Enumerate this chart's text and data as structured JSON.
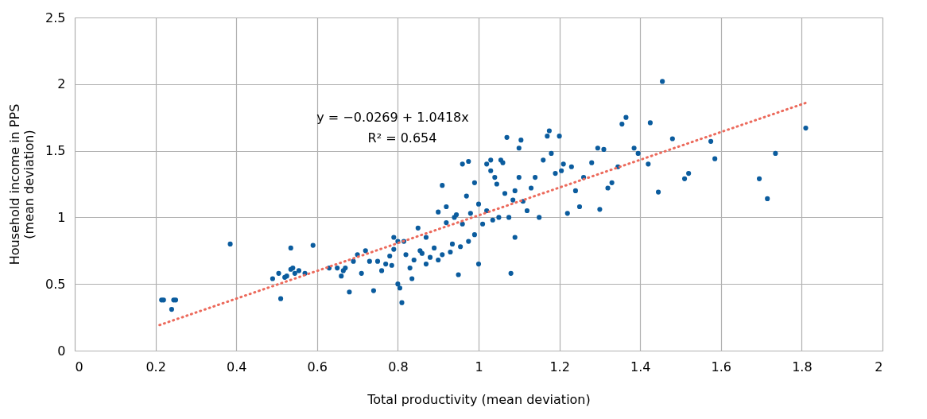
{
  "chart_data": {
    "type": "scatter",
    "xlabel": "Total productivity (mean deviation)",
    "ylabel": "Household income in PPS\n(mean deviation)",
    "xlim": [
      0,
      2
    ],
    "xticks": [
      0,
      0.2,
      0.4,
      0.6,
      0.8,
      1,
      1.2,
      1.4,
      1.6,
      1.8,
      2
    ],
    "ylim": [
      0,
      2.5
    ],
    "yticks": [
      0,
      0.5,
      1,
      1.5,
      2,
      2.5
    ],
    "grid": true,
    "marker": "circle",
    "annotations": [
      "y = −0.0269 + 1.0418x",
      "R² = 0.654"
    ],
    "series": [
      {
        "color": "#0b5c9e",
        "x": [
          0.215,
          0.22,
          0.24,
          0.245,
          0.25,
          0.385,
          0.49,
          0.505,
          0.51,
          0.52,
          0.525,
          0.535,
          0.535,
          0.54,
          0.545,
          0.555,
          0.57,
          0.59,
          0.63,
          0.65,
          0.66,
          0.665,
          0.67,
          0.68,
          0.69,
          0.7,
          0.71,
          0.72,
          0.73,
          0.74,
          0.75,
          0.76,
          0.77,
          0.78,
          0.785,
          0.79,
          0.79,
          0.8,
          0.8,
          0.805,
          0.81,
          0.815,
          0.82,
          0.83,
          0.835,
          0.84,
          0.85,
          0.855,
          0.86,
          0.87,
          0.87,
          0.88,
          0.89,
          0.9,
          0.9,
          0.91,
          0.91,
          0.92,
          0.92,
          0.93,
          0.935,
          0.94,
          0.945,
          0.95,
          0.955,
          0.96,
          0.96,
          0.97,
          0.975,
          0.975,
          0.98,
          0.99,
          0.99,
          1.0,
          1.0,
          1.01,
          1.02,
          1.02,
          1.03,
          1.03,
          1.035,
          1.04,
          1.045,
          1.05,
          1.055,
          1.06,
          1.065,
          1.07,
          1.075,
          1.08,
          1.085,
          1.09,
          1.09,
          1.1,
          1.1,
          1.105,
          1.11,
          1.12,
          1.13,
          1.14,
          1.15,
          1.16,
          1.17,
          1.175,
          1.18,
          1.19,
          1.2,
          1.205,
          1.21,
          1.22,
          1.23,
          1.24,
          1.25,
          1.26,
          1.28,
          1.295,
          1.3,
          1.31,
          1.32,
          1.33,
          1.345,
          1.355,
          1.365,
          1.385,
          1.395,
          1.42,
          1.425,
          1.445,
          1.455,
          1.48,
          1.51,
          1.52,
          1.575,
          1.585,
          1.695,
          1.715,
          1.735,
          1.81
        ],
        "values": [
          0.38,
          0.38,
          0.31,
          0.38,
          0.38,
          0.8,
          0.54,
          0.58,
          0.39,
          0.55,
          0.56,
          0.77,
          0.61,
          0.62,
          0.58,
          0.6,
          0.58,
          0.79,
          0.62,
          0.62,
          0.56,
          0.6,
          0.62,
          0.44,
          0.67,
          0.72,
          0.58,
          0.75,
          0.67,
          0.45,
          0.67,
          0.6,
          0.65,
          0.71,
          0.64,
          0.85,
          0.76,
          0.82,
          0.5,
          0.47,
          0.36,
          0.82,
          0.72,
          0.62,
          0.54,
          0.68,
          0.92,
          0.75,
          0.73,
          0.85,
          0.65,
          0.7,
          0.77,
          1.04,
          0.68,
          1.24,
          0.72,
          0.96,
          1.08,
          0.74,
          0.8,
          1.0,
          1.02,
          0.57,
          0.78,
          1.4,
          0.95,
          1.16,
          1.42,
          0.82,
          1.03,
          0.87,
          1.26,
          0.65,
          1.1,
          0.95,
          1.4,
          1.05,
          1.35,
          1.43,
          0.98,
          1.3,
          1.25,
          1.0,
          1.43,
          1.41,
          1.18,
          1.6,
          1.0,
          0.58,
          1.13,
          0.85,
          1.2,
          1.52,
          1.3,
          1.58,
          1.12,
          1.05,
          1.22,
          1.3,
          1.0,
          1.43,
          1.61,
          1.65,
          1.48,
          1.33,
          1.61,
          1.35,
          1.4,
          1.03,
          1.38,
          1.2,
          1.08,
          1.3,
          1.41,
          1.52,
          1.06,
          1.51,
          1.22,
          1.26,
          1.38,
          1.7,
          1.75,
          1.52,
          1.48,
          1.4,
          1.71,
          1.19,
          2.02,
          1.59,
          1.29,
          1.33,
          1.57,
          1.44,
          1.29,
          1.14,
          1.48,
          1.67
        ]
      },
      {
        "type": "line",
        "color": "#ec6a5c",
        "line_style": "dotted",
        "marker": "none",
        "x": [
          0.21,
          1.81
        ],
        "values": [
          0.192,
          1.859
        ]
      }
    ]
  }
}
